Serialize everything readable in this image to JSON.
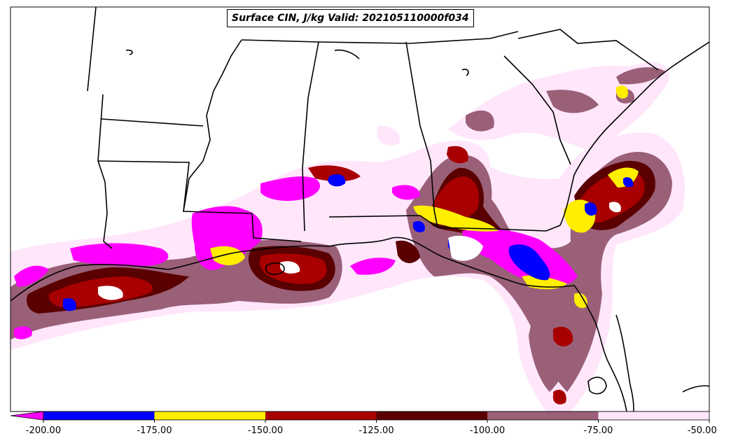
{
  "title": "Surface CIN, J/kg Valid: 202105110000f034",
  "colorbar": {
    "extend": "min",
    "extend_color": "#ff00ff",
    "labels": [
      "-200.00",
      "-175.00",
      "-150.00",
      "-125.00",
      "-100.00",
      "-75.00",
      "-50.00"
    ],
    "bins": [
      {
        "from": -200,
        "to": -175,
        "color": "#0000ff"
      },
      {
        "from": -175,
        "to": -150,
        "color": "#ffee00"
      },
      {
        "from": -150,
        "to": -125,
        "color": "#a80000"
      },
      {
        "from": -125,
        "to": -100,
        "color": "#5a0000"
      },
      {
        "from": -100,
        "to": -75,
        "color": "#9a6078"
      },
      {
        "from": -75,
        "to": -50,
        "color": "#ffe6fb"
      }
    ]
  }
}
